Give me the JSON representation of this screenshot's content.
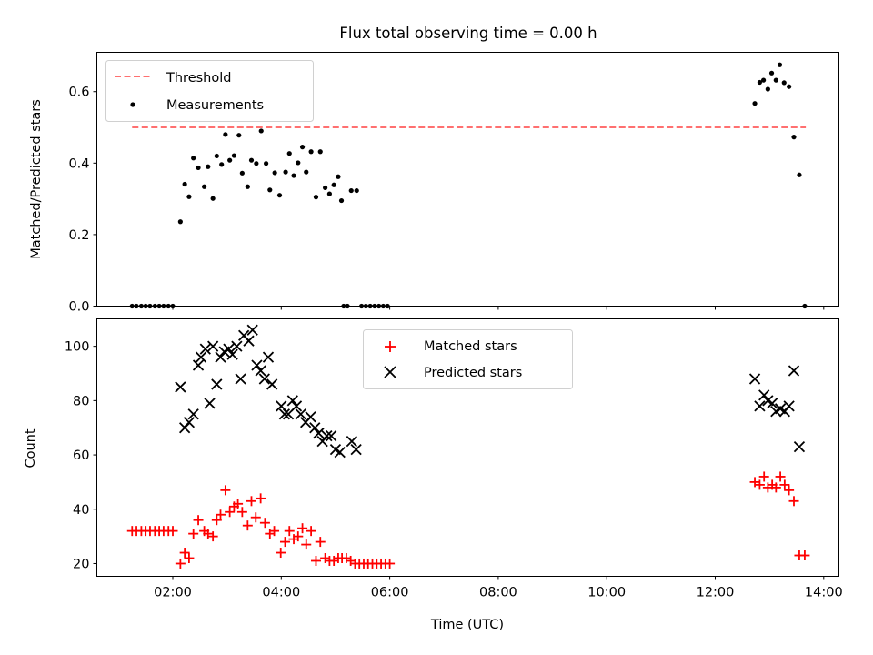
{
  "title": "Flux total observing time = 0.00 h",
  "xlabel": "Time (UTC)",
  "colors": {
    "threshold": "#ff7070",
    "measurements": "#000000",
    "matched": "#ff0000",
    "predicted": "#000000"
  },
  "chart_data": [
    {
      "type": "scatter",
      "ylabel": "Matched/Predicted stars",
      "xlim": [
        0.6,
        14.28
      ],
      "ylim": [
        0,
        0.71
      ],
      "yticks": [
        0.0,
        0.2,
        0.4,
        0.6
      ],
      "ytick_labels": [
        "0.0",
        "0.2",
        "0.4",
        "0.6"
      ],
      "legend": {
        "position": "upper left",
        "entries": [
          "Threshold",
          "Measurements"
        ]
      },
      "threshold": {
        "name": "Threshold",
        "value": 0.5,
        "x": [
          1.25,
          13.67
        ]
      },
      "series": [
        {
          "name": "Measurements",
          "points": [
            [
              1.25,
              0
            ],
            [
              1.33,
              0
            ],
            [
              1.42,
              0
            ],
            [
              1.5,
              0
            ],
            [
              1.58,
              0
            ],
            [
              1.67,
              0
            ],
            [
              1.75,
              0
            ],
            [
              1.83,
              0
            ],
            [
              1.92,
              0
            ],
            [
              2.0,
              0
            ],
            [
              2.14,
              0.236
            ],
            [
              2.22,
              0.341
            ],
            [
              2.3,
              0.306
            ],
            [
              2.38,
              0.414
            ],
            [
              2.47,
              0.387
            ],
            [
              2.58,
              0.334
            ],
            [
              2.65,
              0.39
            ],
            [
              2.74,
              0.301
            ],
            [
              2.81,
              0.42
            ],
            [
              2.9,
              0.396
            ],
            [
              2.97,
              0.48
            ],
            [
              3.05,
              0.408
            ],
            [
              3.13,
              0.421
            ],
            [
              3.22,
              0.478
            ],
            [
              3.28,
              0.372
            ],
            [
              3.38,
              0.334
            ],
            [
              3.45,
              0.408
            ],
            [
              3.54,
              0.399
            ],
            [
              3.63,
              0.49
            ],
            [
              3.72,
              0.399
            ],
            [
              3.79,
              0.325
            ],
            [
              3.88,
              0.373
            ],
            [
              3.97,
              0.31
            ],
            [
              4.08,
              0.375
            ],
            [
              4.15,
              0.427
            ],
            [
              4.23,
              0.365
            ],
            [
              4.31,
              0.401
            ],
            [
              4.39,
              0.445
            ],
            [
              4.46,
              0.375
            ],
            [
              4.55,
              0.432
            ],
            [
              4.64,
              0.305
            ],
            [
              4.72,
              0.432
            ],
            [
              4.81,
              0.331
            ],
            [
              4.89,
              0.314
            ],
            [
              4.97,
              0.339
            ],
            [
              5.05,
              0.362
            ],
            [
              5.11,
              0.295
            ],
            [
              5.29,
              0.323
            ],
            [
              5.39,
              0.323
            ],
            [
              5.15,
              0
            ],
            [
              5.22,
              0
            ],
            [
              5.48,
              0
            ],
            [
              5.56,
              0
            ],
            [
              5.64,
              0
            ],
            [
              5.72,
              0
            ],
            [
              5.8,
              0
            ],
            [
              5.88,
              0
            ],
            [
              5.96,
              0
            ],
            [
              12.73,
              0.567
            ],
            [
              12.82,
              0.626
            ],
            [
              12.89,
              0.632
            ],
            [
              12.97,
              0.607
            ],
            [
              13.04,
              0.652
            ],
            [
              13.12,
              0.632
            ],
            [
              13.19,
              0.675
            ],
            [
              13.27,
              0.625
            ],
            [
              13.36,
              0.614
            ],
            [
              13.45,
              0.473
            ],
            [
              13.55,
              0.367
            ],
            [
              13.65,
              0
            ]
          ]
        }
      ]
    },
    {
      "type": "scatter",
      "ylabel": "Count",
      "xlim": [
        0.6,
        14.28
      ],
      "ylim": [
        15.3,
        110.1
      ],
      "yticks": [
        20,
        40,
        60,
        80,
        100
      ],
      "ytick_labels": [
        "20",
        "40",
        "60",
        "80",
        "100"
      ],
      "xticks": [
        2,
        4,
        6,
        8,
        10,
        12,
        14
      ],
      "xtick_labels": [
        "02:00",
        "04:00",
        "06:00",
        "08:00",
        "10:00",
        "12:00",
        "14:00"
      ],
      "legend": {
        "position": "upper center",
        "entries": [
          "Matched stars",
          "Predicted stars"
        ]
      },
      "series": [
        {
          "name": "Matched stars",
          "marker": "plus",
          "points": [
            [
              1.25,
              32
            ],
            [
              1.33,
              32
            ],
            [
              1.42,
              32
            ],
            [
              1.5,
              32
            ],
            [
              1.58,
              32
            ],
            [
              1.67,
              32
            ],
            [
              1.75,
              32
            ],
            [
              1.83,
              32
            ],
            [
              1.92,
              32
            ],
            [
              2.0,
              32
            ],
            [
              2.14,
              20
            ],
            [
              2.22,
              24
            ],
            [
              2.3,
              22
            ],
            [
              2.38,
              31
            ],
            [
              2.47,
              36
            ],
            [
              2.58,
              32
            ],
            [
              2.65,
              31
            ],
            [
              2.74,
              30
            ],
            [
              2.81,
              36
            ],
            [
              2.88,
              38
            ],
            [
              2.97,
              47
            ],
            [
              3.05,
              39
            ],
            [
              3.13,
              41
            ],
            [
              3.2,
              42
            ],
            [
              3.28,
              39
            ],
            [
              3.38,
              34
            ],
            [
              3.45,
              43
            ],
            [
              3.53,
              37
            ],
            [
              3.62,
              44
            ],
            [
              3.7,
              35
            ],
            [
              3.79,
              31
            ],
            [
              3.87,
              32
            ],
            [
              3.99,
              24
            ],
            [
              4.07,
              28
            ],
            [
              4.15,
              32
            ],
            [
              4.23,
              29
            ],
            [
              4.31,
              30
            ],
            [
              4.39,
              33
            ],
            [
              4.46,
              27
            ],
            [
              4.55,
              32
            ],
            [
              4.64,
              21
            ],
            [
              4.72,
              28
            ],
            [
              4.81,
              22
            ],
            [
              4.89,
              21
            ],
            [
              4.97,
              21
            ],
            [
              5.05,
              22
            ],
            [
              5.12,
              22
            ],
            [
              5.2,
              22
            ],
            [
              5.28,
              21
            ],
            [
              5.36,
              20
            ],
            [
              5.44,
              20
            ],
            [
              5.52,
              20
            ],
            [
              5.6,
              20
            ],
            [
              5.68,
              20
            ],
            [
              5.76,
              20
            ],
            [
              5.84,
              20
            ],
            [
              5.92,
              20
            ],
            [
              6.0,
              20
            ],
            [
              12.73,
              50
            ],
            [
              12.82,
              49
            ],
            [
              12.9,
              52
            ],
            [
              12.97,
              48
            ],
            [
              13.05,
              49
            ],
            [
              13.12,
              48
            ],
            [
              13.2,
              52
            ],
            [
              13.28,
              49
            ],
            [
              13.36,
              47
            ],
            [
              13.45,
              43
            ],
            [
              13.55,
              23
            ],
            [
              13.65,
              23
            ]
          ]
        },
        {
          "name": "Predicted stars",
          "marker": "x",
          "points": [
            [
              2.14,
              85
            ],
            [
              2.22,
              70
            ],
            [
              2.3,
              72
            ],
            [
              2.38,
              75
            ],
            [
              2.47,
              93
            ],
            [
              2.52,
              96
            ],
            [
              2.6,
              99
            ],
            [
              2.68,
              79
            ],
            [
              2.74,
              100
            ],
            [
              2.81,
              86
            ],
            [
              2.88,
              96
            ],
            [
              2.95,
              98
            ],
            [
              3.03,
              99
            ],
            [
              3.1,
              97
            ],
            [
              3.18,
              100
            ],
            [
              3.25,
              88
            ],
            [
              3.31,
              104
            ],
            [
              3.4,
              102
            ],
            [
              3.47,
              106
            ],
            [
              3.55,
              93
            ],
            [
              3.62,
              91
            ],
            [
              3.69,
              88
            ],
            [
              3.76,
              96
            ],
            [
              3.83,
              86
            ],
            [
              4.0,
              78
            ],
            [
              4.06,
              75
            ],
            [
              4.13,
              75
            ],
            [
              4.21,
              80
            ],
            [
              4.28,
              78
            ],
            [
              4.36,
              75
            ],
            [
              4.45,
              72
            ],
            [
              4.54,
              74
            ],
            [
              4.62,
              70
            ],
            [
              4.69,
              68
            ],
            [
              4.76,
              65
            ],
            [
              4.84,
              67
            ],
            [
              4.92,
              67
            ],
            [
              5.0,
              62
            ],
            [
              5.08,
              61
            ],
            [
              5.3,
              65
            ],
            [
              5.38,
              62
            ],
            [
              12.73,
              88
            ],
            [
              12.82,
              78
            ],
            [
              12.9,
              82
            ],
            [
              12.97,
              80
            ],
            [
              13.05,
              79
            ],
            [
              13.12,
              76
            ],
            [
              13.2,
              77
            ],
            [
              13.28,
              76
            ],
            [
              13.36,
              78
            ],
            [
              13.45,
              91
            ],
            [
              13.55,
              63
            ]
          ]
        }
      ]
    }
  ]
}
